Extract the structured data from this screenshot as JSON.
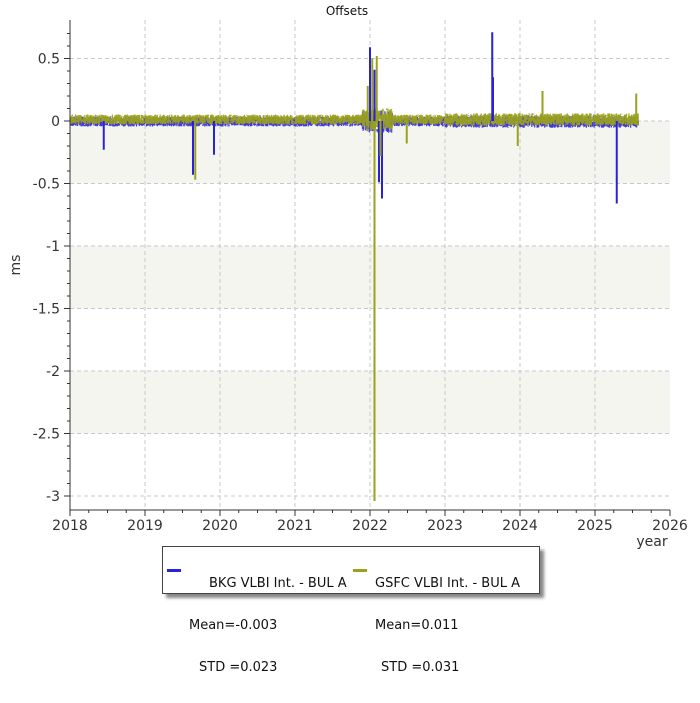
{
  "chart_data": {
    "type": "line",
    "title": "Offsets",
    "xlabel": "year",
    "ylabel": "ms",
    "xlim": [
      2018,
      2026
    ],
    "ylim": [
      -3.1,
      0.8
    ],
    "xticks": [
      "2018",
      "2019",
      "2020",
      "2021",
      "2022",
      "2023",
      "2024",
      "2025",
      "2026"
    ],
    "yticks": [
      "0.5",
      "0",
      "-0.5",
      "-1",
      "-1.5",
      "-2",
      "-2.5",
      "-3"
    ],
    "grid": true,
    "legend_position": "bottom-center",
    "series": [
      {
        "name": "BKG VLBI Int. - BUL A",
        "mean_label": "Mean=-0.003",
        "std_label": "STD =0.023",
        "color": "#2a22d6",
        "spikes": [
          {
            "x": 2018.45,
            "y": -0.23
          },
          {
            "x": 2019.64,
            "y": -0.43
          },
          {
            "x": 2019.92,
            "y": -0.27
          },
          {
            "x": 2022.0,
            "y": 0.59
          },
          {
            "x": 2022.06,
            "y": 0.41
          },
          {
            "x": 2022.12,
            "y": -0.49
          },
          {
            "x": 2022.16,
            "y": -0.62
          },
          {
            "x": 2023.63,
            "y": 0.71
          },
          {
            "x": 2023.64,
            "y": 0.35
          },
          {
            "x": 2025.29,
            "y": -0.66
          }
        ]
      },
      {
        "name": "GSFC VLBI Int. - BUL A",
        "mean_label": "Mean=0.011",
        "std_label": "STD =0.031",
        "color": "#9aa11c",
        "spikes": [
          {
            "x": 2019.67,
            "y": -0.47
          },
          {
            "x": 2021.97,
            "y": 0.28
          },
          {
            "x": 2022.03,
            "y": 0.5
          },
          {
            "x": 2022.06,
            "y": -3.04
          },
          {
            "x": 2022.09,
            "y": 0.52
          },
          {
            "x": 2022.14,
            "y": -0.28
          },
          {
            "x": 2022.49,
            "y": -0.18
          },
          {
            "x": 2023.97,
            "y": -0.2
          },
          {
            "x": 2024.3,
            "y": 0.24
          },
          {
            "x": 2025.55,
            "y": 0.22
          }
        ]
      }
    ]
  }
}
